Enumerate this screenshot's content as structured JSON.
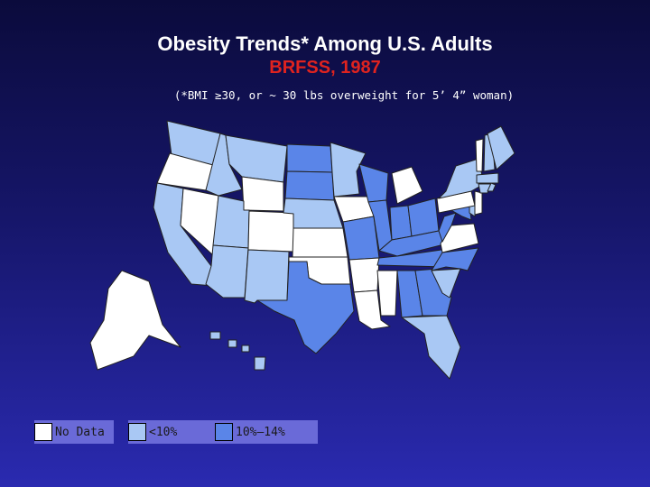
{
  "title": "Obesity Trends* Among U.S. Adults",
  "subtitle": "BRFSS, 1987",
  "note": "(*BMI ≥30, or ~ 30 lbs overweight for 5’ 4” woman)",
  "colors": {
    "no_data": "#ffffff",
    "lt10": "#a9c8f4",
    "10_14": "#5a85e8",
    "border": "#222222",
    "title": "#ffffff",
    "subtitle": "#e0231f"
  },
  "legend": [
    {
      "label": "No Data",
      "category": "no_data"
    },
    {
      "label": "<10%",
      "category": "lt10"
    },
    {
      "label": "10%–14%",
      "category": "10_14"
    }
  ],
  "states": {
    "WA": "lt10",
    "OR": "no_data",
    "CA": "lt10",
    "NV": "no_data",
    "ID": "lt10",
    "MT": "lt10",
    "WY": "no_data",
    "UT": "lt10",
    "AZ": "lt10",
    "NM": "lt10",
    "CO": "no_data",
    "ND": "10_14",
    "SD": "10_14",
    "NE": "lt10",
    "KS": "no_data",
    "OK": "no_data",
    "TX": "10_14",
    "MN": "lt10",
    "IA": "no_data",
    "MO": "10_14",
    "AR": "no_data",
    "LA": "no_data",
    "WI": "10_14",
    "IL": "10_14",
    "MI": "no_data",
    "IN": "10_14",
    "OH": "10_14",
    "KY": "10_14",
    "TN": "10_14",
    "MS": "no_data",
    "AL": "10_14",
    "GA": "10_14",
    "FL": "lt10",
    "SC": "lt10",
    "NC": "10_14",
    "VA": "no_data",
    "WV": "10_14",
    "MD": "10_14",
    "DE": "lt10",
    "PA": "no_data",
    "NJ": "no_data",
    "NY": "lt10",
    "CT": "lt10",
    "RI": "lt10",
    "MA": "lt10",
    "VT": "no_data",
    "NH": "lt10",
    "ME": "lt10",
    "AK": "no_data",
    "HI": "lt10"
  }
}
